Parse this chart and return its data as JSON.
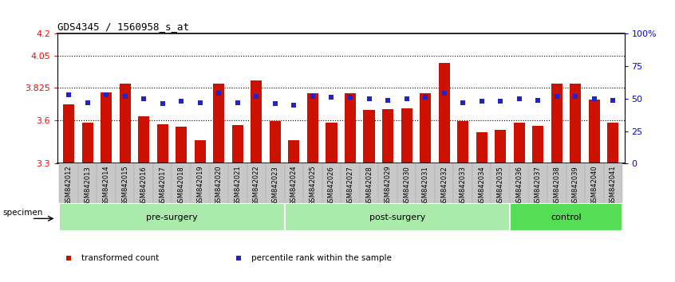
{
  "title": "GDS4345 / 1560958_s_at",
  "samples": [
    "GSM842012",
    "GSM842013",
    "GSM842014",
    "GSM842015",
    "GSM842016",
    "GSM842017",
    "GSM842018",
    "GSM842019",
    "GSM842020",
    "GSM842021",
    "GSM842022",
    "GSM842023",
    "GSM842024",
    "GSM842025",
    "GSM842026",
    "GSM842027",
    "GSM842028",
    "GSM842029",
    "GSM842030",
    "GSM842031",
    "GSM842032",
    "GSM842033",
    "GSM842034",
    "GSM842035",
    "GSM842036",
    "GSM842037",
    "GSM842038",
    "GSM842039",
    "GSM842040",
    "GSM842041"
  ],
  "transformed_count": [
    3.71,
    3.585,
    3.795,
    3.855,
    3.63,
    3.575,
    3.555,
    3.46,
    3.855,
    3.565,
    3.875,
    3.595,
    3.46,
    3.79,
    3.585,
    3.79,
    3.67,
    3.675,
    3.685,
    3.79,
    4.0,
    3.595,
    3.52,
    3.535,
    3.585,
    3.56,
    3.855,
    3.855,
    3.745,
    3.585
  ],
  "percentile_rank_pct": [
    53,
    47,
    53,
    52,
    50,
    46,
    48,
    47,
    54,
    47,
    52,
    46,
    45,
    52,
    51,
    51,
    50,
    49,
    50,
    51,
    54,
    47,
    48,
    48,
    50,
    49,
    52,
    52,
    50,
    49
  ],
  "groups": [
    {
      "label": "pre-surgery",
      "start": 0,
      "end": 12
    },
    {
      "label": "post-surgery",
      "start": 12,
      "end": 24
    },
    {
      "label": "control",
      "start": 24,
      "end": 30
    }
  ],
  "group_colors": [
    "#aaeaaa",
    "#aaeaaa",
    "#55dd55"
  ],
  "ylim_left": [
    3.3,
    4.2
  ],
  "ylim_right": [
    0,
    100
  ],
  "yticks_left": [
    3.3,
    3.6,
    3.825,
    4.05,
    4.2
  ],
  "ytick_labels_left": [
    "3.3",
    "3.6",
    "3.825",
    "4.05",
    "4.2"
  ],
  "yticks_right": [
    0,
    25,
    50,
    75,
    100
  ],
  "ytick_labels_right": [
    "0",
    "25",
    "50",
    "75",
    "100%"
  ],
  "hlines": [
    3.6,
    3.825,
    4.05
  ],
  "bar_color": "#cc1100",
  "marker_color": "#2222cc",
  "bar_bottom": 3.3,
  "legend_items": [
    "transformed count",
    "percentile rank within the sample"
  ],
  "legend_colors": [
    "#cc1100",
    "#2222cc"
  ],
  "specimen_label": "specimen"
}
